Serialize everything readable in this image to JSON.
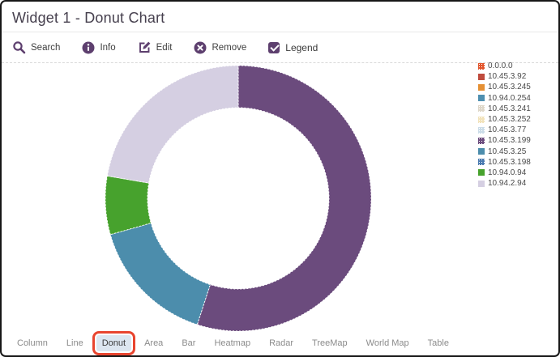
{
  "window": {
    "title": "Widget 1 - Donut Chart"
  },
  "toolbar": {
    "items": [
      {
        "id": "search",
        "label": "Search",
        "icon": "search-icon"
      },
      {
        "id": "info",
        "label": "Info",
        "icon": "info-circle-icon"
      },
      {
        "id": "edit",
        "label": "Edit",
        "icon": "edit-pencil-icon"
      },
      {
        "id": "remove",
        "label": "Remove",
        "icon": "remove-circle-icon"
      }
    ],
    "legend_toggle": {
      "label": "Legend",
      "checked": true,
      "icon": "checkbox-checked-icon"
    }
  },
  "chart_data": {
    "type": "donut",
    "title": "Widget 1 - Donut Chart",
    "legend_position": "right",
    "values_unit": "percent of ring, estimated from arc angles (no numeric labels shown)",
    "start_angle_deg": 0,
    "direction": "clockwise-from-top",
    "inner_radius_ratio": 0.68,
    "series": [
      {
        "name": "0.0.0.0",
        "value": 0,
        "color": "#e2552c",
        "pattern": true
      },
      {
        "name": "10.45.3.92",
        "value": 0,
        "color": "#bf4b3d",
        "pattern": false
      },
      {
        "name": "10.45.3.245",
        "value": 0,
        "color": "#e59034",
        "pattern": false
      },
      {
        "name": "10.94.0.254",
        "value": 0,
        "color": "#4e8fb0",
        "pattern": false
      },
      {
        "name": "10.45.3.241",
        "value": 0,
        "color": "#ded7c9",
        "pattern": true
      },
      {
        "name": "10.45.3.252",
        "value": 0,
        "color": "#f2e3bb",
        "pattern": true
      },
      {
        "name": "10.45.3.77",
        "value": 0,
        "color": "#cbdce8",
        "pattern": true
      },
      {
        "name": "10.45.3.199",
        "value": 55.0,
        "color": "#6b4b7d",
        "pattern": true
      },
      {
        "name": "10.45.3.25",
        "value": 15.6,
        "color": "#4c8dac",
        "pattern": false
      },
      {
        "name": "10.45.3.198",
        "value": 0,
        "color": "#4a7ab0",
        "pattern": true
      },
      {
        "name": "10.94.0.94",
        "value": 7.1,
        "color": "#47a22d",
        "pattern": false
      },
      {
        "name": "10.94.2.94",
        "value": 22.3,
        "color": "#d5cfe2",
        "pattern": false
      }
    ]
  },
  "tabs": {
    "items": [
      {
        "label": "Column",
        "selected": false,
        "annotated": false
      },
      {
        "label": "Line",
        "selected": false,
        "annotated": false
      },
      {
        "label": "Donut",
        "selected": true,
        "annotated": true
      },
      {
        "label": "Area",
        "selected": false,
        "annotated": false
      },
      {
        "label": "Bar",
        "selected": false,
        "annotated": false
      },
      {
        "label": "Heatmap",
        "selected": false,
        "annotated": false
      },
      {
        "label": "Radar",
        "selected": false,
        "annotated": false
      },
      {
        "label": "TreeMap",
        "selected": false,
        "annotated": false
      },
      {
        "label": "World Map",
        "selected": false,
        "annotated": false
      },
      {
        "label": "Table",
        "selected": false,
        "annotated": false
      }
    ]
  },
  "colors": {
    "accent_purple": "#5d3f6e",
    "title_text": "#46404e",
    "annotation_red": "#e8452f",
    "tab_selected_bg": "#dce6f0",
    "tab_text": "#8b8b8b",
    "legend_text": "#4a4a4a",
    "divider": "#e9e9e9",
    "dashed_divider": "#d8d8d8"
  }
}
